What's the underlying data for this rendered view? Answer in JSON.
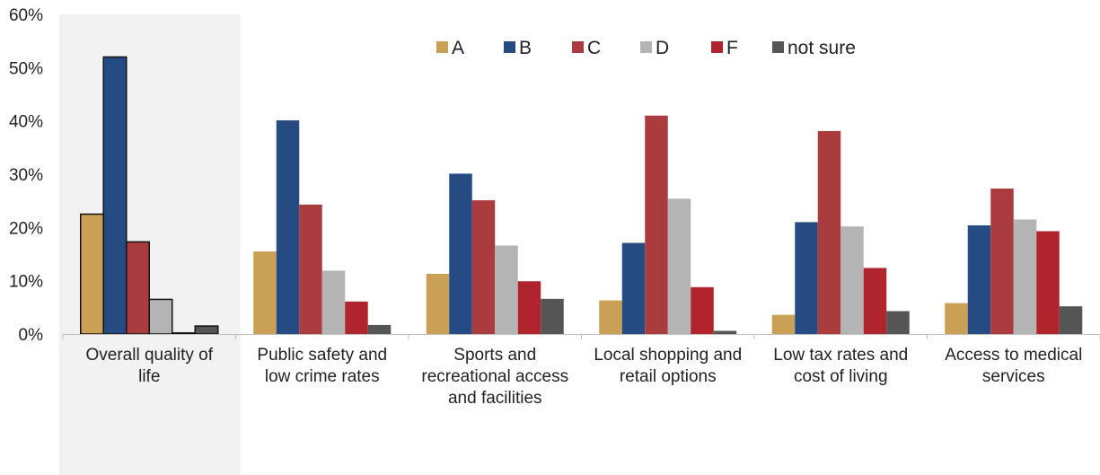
{
  "chart_data": {
    "type": "bar",
    "title": "",
    "xlabel": "",
    "ylabel": "",
    "ylim": [
      0,
      60
    ],
    "y_ticks": [
      {
        "value": 0,
        "label": "0%"
      },
      {
        "value": 10,
        "label": "10%"
      },
      {
        "value": 20,
        "label": "20%"
      },
      {
        "value": 30,
        "label": "30%"
      },
      {
        "value": 40,
        "label": "40%"
      },
      {
        "value": 50,
        "label": "50%"
      },
      {
        "value": 60,
        "label": "60%"
      }
    ],
    "grid": false,
    "legend_position": "top",
    "highlighted_category": 0,
    "categories": [
      [
        "Overall quality of",
        "life"
      ],
      [
        "Public safety and",
        "low crime rates"
      ],
      [
        "Sports and",
        "recreational access",
        "and facilities"
      ],
      [
        "Local shopping and",
        "retail options"
      ],
      [
        "Low tax rates and",
        "cost of living"
      ],
      [
        "Access to medical",
        "services"
      ]
    ],
    "series": [
      {
        "name": "A",
        "color": "#C9A055",
        "values": [
          22.5,
          15.5,
          11.3,
          6.3,
          3.6,
          5.8
        ]
      },
      {
        "name": "B",
        "color": "#264A82",
        "values": [
          52.0,
          40.1,
          30.1,
          17.1,
          21.0,
          20.4
        ]
      },
      {
        "name": "C",
        "color": "#AA3B3F",
        "values": [
          17.3,
          24.3,
          25.1,
          41.0,
          38.1,
          27.3
        ]
      },
      {
        "name": "D",
        "color": "#B4B4B4",
        "values": [
          6.5,
          11.9,
          16.6,
          25.4,
          20.2,
          21.5
        ]
      },
      {
        "name": "F",
        "color": "#B0242D",
        "values": [
          0.2,
          6.1,
          9.9,
          8.8,
          12.4,
          19.3
        ]
      },
      {
        "name": "not sure",
        "color": "#555555",
        "values": [
          1.5,
          1.7,
          6.6,
          0.6,
          4.3,
          5.2
        ]
      }
    ]
  }
}
